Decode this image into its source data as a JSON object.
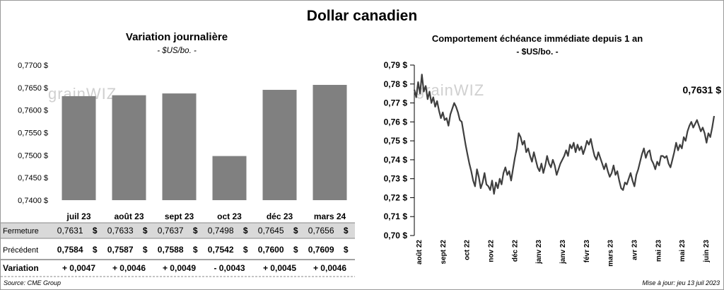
{
  "title": "Dollar canadien",
  "footer": {
    "source": "Source: CME Group",
    "updated": "Mise à jour: jeu 13 juil 2023"
  },
  "watermark": "grainWIZ",
  "colors": {
    "bar": "#808080",
    "line": "#3f3f3f",
    "row_shade": "#d9d9d9",
    "positive": "#1a7f1a",
    "negative": "#e00000"
  },
  "chart_data": [
    {
      "type": "bar",
      "title": "Variation  journalière",
      "subtitle": "- $US/bo. -",
      "categories": [
        "juil 23",
        "août 23",
        "sept 23",
        "oct 23",
        "déc 23",
        "mars 24"
      ],
      "values": [
        0.7631,
        0.7633,
        0.7637,
        0.7498,
        0.7645,
        0.7656
      ],
      "ylim": [
        0.74,
        0.77
      ],
      "yticks": [
        "0,7400 $",
        "0,7450 $",
        "0,7500 $",
        "0,7550 $",
        "0,7600 $",
        "0,7650 $",
        "0,7700 $"
      ],
      "table": {
        "rows": [
          {
            "label": "Fermeture",
            "values": [
              "0,7631",
              "0,7633",
              "0,7637",
              "0,7498",
              "0,7645",
              "0,7656"
            ],
            "unit": "$",
            "shaded": true
          },
          {
            "label": "Précédent",
            "values": [
              "0,7584",
              "0,7587",
              "0,7588",
              "0,7542",
              "0,7600",
              "0,7609"
            ],
            "unit": "$",
            "shaded": false
          },
          {
            "label": "Variation",
            "values": [
              "+ 0,0047",
              "+ 0,0046",
              "+ 0,0049",
              "- 0,0043",
              "+ 0,0045",
              "+ 0,0046"
            ],
            "signs": [
              "+",
              "+",
              "+",
              "-",
              "+",
              "+"
            ]
          }
        ]
      }
    },
    {
      "type": "line",
      "title": "Comportement échéance immédiate depuis 1 an",
      "subtitle": "- $US/bo. -",
      "ylim": [
        0.7,
        0.79
      ],
      "yticks": [
        "0,70 $",
        "0,71 $",
        "0,72 $",
        "0,73 $",
        "0,74 $",
        "0,75 $",
        "0,76 $",
        "0,77 $",
        "0,78 $",
        "0,79 $"
      ],
      "xticks": [
        "août 22",
        "sept 22",
        "oct 22",
        "nov 22",
        "déc 22",
        "janv 23",
        "janv 23",
        "févr 23",
        "mars 23",
        "avr 23",
        "mai 23",
        "mai 23",
        "juin 23"
      ],
      "last_label": "0,7631 $",
      "series": [
        {
          "values": [
            0.777,
            0.773,
            0.781,
            0.775,
            0.785,
            0.776,
            0.779,
            0.772,
            0.776,
            0.77,
            0.773,
            0.768,
            0.771,
            0.766,
            0.762,
            0.765,
            0.761,
            0.762,
            0.758,
            0.764,
            0.767,
            0.77,
            0.768,
            0.765,
            0.761,
            0.76,
            0.754,
            0.748,
            0.743,
            0.738,
            0.734,
            0.729,
            0.726,
            0.735,
            0.731,
            0.725,
            0.728,
            0.733,
            0.727,
            0.726,
            0.724,
            0.729,
            0.722,
            0.728,
            0.725,
            0.73,
            0.727,
            0.733,
            0.736,
            0.732,
            0.734,
            0.729,
            0.735,
            0.741,
            0.746,
            0.754,
            0.752,
            0.748,
            0.75,
            0.744,
            0.746,
            0.742,
            0.739,
            0.744,
            0.74,
            0.736,
            0.734,
            0.738,
            0.733,
            0.737,
            0.742,
            0.738,
            0.736,
            0.74,
            0.737,
            0.732,
            0.735,
            0.738,
            0.74,
            0.742,
            0.745,
            0.742,
            0.748,
            0.746,
            0.749,
            0.744,
            0.748,
            0.745,
            0.747,
            0.743,
            0.746,
            0.75,
            0.748,
            0.751,
            0.746,
            0.742,
            0.74,
            0.744,
            0.741,
            0.738,
            0.735,
            0.738,
            0.734,
            0.731,
            0.733,
            0.737,
            0.732,
            0.734,
            0.729,
            0.725,
            0.724,
            0.728,
            0.727,
            0.73,
            0.733,
            0.729,
            0.726,
            0.732,
            0.735,
            0.739,
            0.743,
            0.746,
            0.741,
            0.744,
            0.745,
            0.74,
            0.738,
            0.735,
            0.739,
            0.737,
            0.742,
            0.742,
            0.741,
            0.742,
            0.738,
            0.736,
            0.74,
            0.744,
            0.749,
            0.745,
            0.748,
            0.746,
            0.752,
            0.75,
            0.755,
            0.758,
            0.76,
            0.757,
            0.759,
            0.761,
            0.758,
            0.755,
            0.757,
            0.754,
            0.749,
            0.754,
            0.752,
            0.757,
            0.7631
          ]
        }
      ]
    }
  ]
}
